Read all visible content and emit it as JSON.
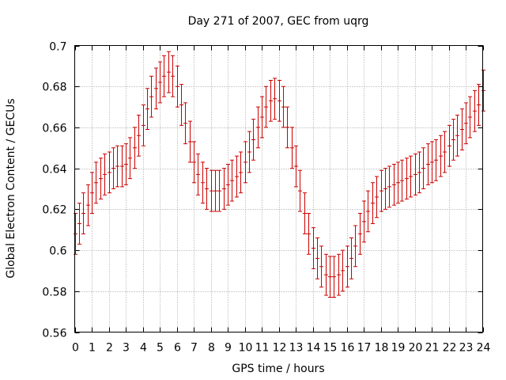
{
  "chart_data": {
    "type": "scatter",
    "title": "Day 271 of 2007, GEC from uqrg",
    "xlabel": "GPS time / hours",
    "ylabel": "Global Electron Content / GECUs",
    "xlim": [
      0,
      24
    ],
    "ylim": [
      0.56,
      0.7
    ],
    "xticks": [
      0,
      1,
      2,
      3,
      4,
      5,
      6,
      7,
      8,
      9,
      10,
      11,
      12,
      13,
      14,
      15,
      16,
      17,
      18,
      19,
      20,
      21,
      22,
      23,
      24
    ],
    "xtick_labels": [
      "0",
      "1",
      "2",
      "3",
      "4",
      "5",
      "6",
      "7",
      "8",
      "9",
      "10",
      "11",
      "12",
      "13",
      "14",
      "15",
      "16",
      "17",
      "18",
      "19",
      "20",
      "21",
      "22",
      "23",
      "24"
    ],
    "yticks": [
      0.56,
      0.58,
      0.6,
      0.62,
      0.64,
      0.66,
      0.68,
      0.7
    ],
    "ytick_labels": [
      "0.56",
      "0.58",
      "0.6",
      "0.62",
      "0.64",
      "0.66",
      "0.68",
      "0.7"
    ],
    "grid": true,
    "error_bar_color": "#cc0000",
    "x": [
      0,
      0.25,
      0.5,
      0.75,
      1,
      1.25,
      1.5,
      1.75,
      2,
      2.25,
      2.5,
      2.75,
      3,
      3.25,
      3.5,
      3.75,
      4,
      4.25,
      4.5,
      4.75,
      5,
      5.25,
      5.5,
      5.75,
      6,
      6.25,
      6.5,
      6.75,
      7,
      7.25,
      7.5,
      7.75,
      8,
      8.25,
      8.5,
      8.75,
      9,
      9.25,
      9.5,
      9.75,
      10,
      10.25,
      10.5,
      10.75,
      11,
      11.25,
      11.5,
      11.75,
      12,
      12.25,
      12.5,
      12.75,
      13,
      13.25,
      13.5,
      13.75,
      14,
      14.25,
      14.5,
      14.75,
      15,
      15.25,
      15.5,
      15.75,
      16,
      16.25,
      16.5,
      16.75,
      17,
      17.25,
      17.5,
      17.75,
      18,
      18.25,
      18.5,
      18.75,
      19,
      19.25,
      19.5,
      19.75,
      20,
      20.25,
      20.5,
      20.75,
      21,
      21.25,
      21.5,
      21.75,
      22,
      22.25,
      22.5,
      22.75,
      23,
      23.25,
      23.5,
      23.75,
      24
    ],
    "y": [
      0.608,
      0.613,
      0.618,
      0.622,
      0.628,
      0.633,
      0.635,
      0.637,
      0.638,
      0.64,
      0.641,
      0.641,
      0.642,
      0.645,
      0.65,
      0.656,
      0.661,
      0.669,
      0.675,
      0.679,
      0.682,
      0.685,
      0.687,
      0.685,
      0.68,
      0.671,
      0.662,
      0.653,
      0.643,
      0.637,
      0.633,
      0.63,
      0.629,
      0.629,
      0.629,
      0.63,
      0.632,
      0.634,
      0.636,
      0.638,
      0.643,
      0.648,
      0.654,
      0.66,
      0.665,
      0.67,
      0.673,
      0.674,
      0.673,
      0.67,
      0.66,
      0.65,
      0.641,
      0.629,
      0.618,
      0.608,
      0.601,
      0.596,
      0.592,
      0.588,
      0.587,
      0.587,
      0.588,
      0.59,
      0.592,
      0.596,
      0.602,
      0.608,
      0.614,
      0.619,
      0.623,
      0.626,
      0.629,
      0.63,
      0.631,
      0.632,
      0.633,
      0.634,
      0.635,
      0.636,
      0.637,
      0.638,
      0.64,
      0.642,
      0.643,
      0.644,
      0.646,
      0.648,
      0.651,
      0.654,
      0.656,
      0.659,
      0.662,
      0.665,
      0.668,
      0.671,
      0.678
    ],
    "error": 0.01
  }
}
